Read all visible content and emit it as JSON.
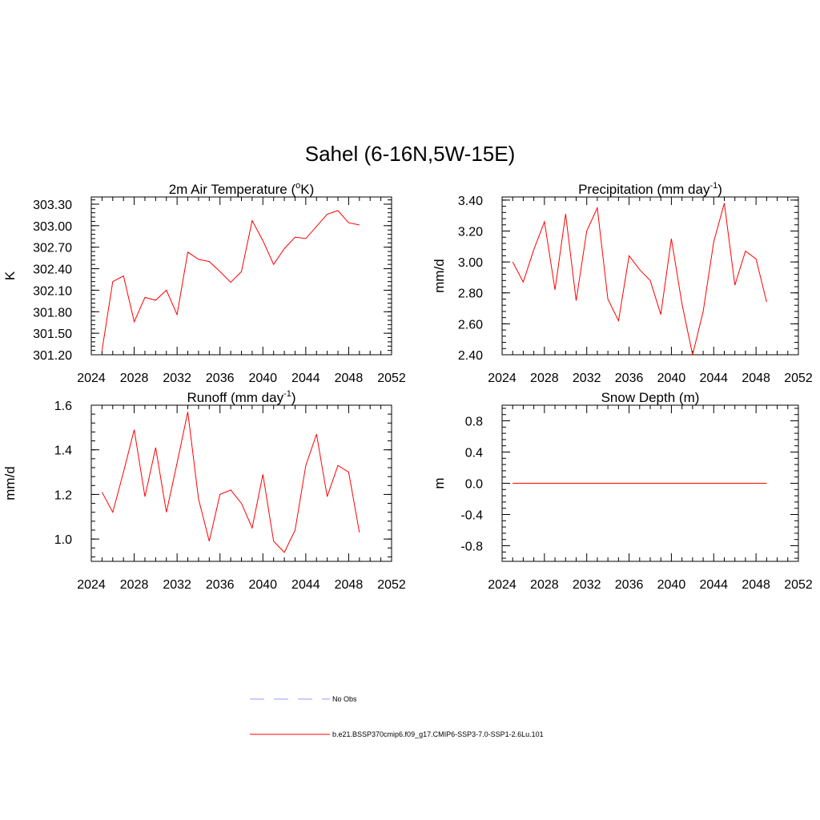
{
  "figure": {
    "title": "Sahel (6-16N,5W-15E)",
    "legend": [
      {
        "label": "No Obs",
        "color": "#9999ff",
        "dash": true
      },
      {
        "label": "b.e21.BSSP370cmip6.f09_g17.CMIP6-SSP3-7.0-SSP1-2.6Lu.101",
        "color": "#ff0000",
        "dash": false
      }
    ]
  },
  "chart_data": [
    {
      "type": "line",
      "title": "2m Air Temperature (",
      "title_sup": "o",
      "title_after": "K)",
      "ylabel": "K",
      "xlim": [
        2024,
        2052
      ],
      "ylim": [
        301.2,
        303.4
      ],
      "xticks": [
        "2024",
        "2028",
        "2032",
        "2036",
        "2040",
        "2044",
        "2048",
        "2052"
      ],
      "yticks": [
        "301.20",
        "301.50",
        "301.80",
        "302.10",
        "302.40",
        "302.70",
        "303.00",
        "303.30"
      ],
      "color": "#ff0000",
      "x": [
        2025,
        2026,
        2027,
        2028,
        2029,
        2030,
        2031,
        2032,
        2033,
        2034,
        2035,
        2036,
        2037,
        2038,
        2039,
        2040,
        2041,
        2042,
        2043,
        2044,
        2045,
        2046,
        2047,
        2048,
        2049
      ],
      "y": [
        301.26,
        302.22,
        302.3,
        301.66,
        302.0,
        301.96,
        302.1,
        301.76,
        302.63,
        302.53,
        302.5,
        302.36,
        302.21,
        302.36,
        303.07,
        302.79,
        302.46,
        302.68,
        302.84,
        302.82,
        302.99,
        303.16,
        303.21,
        303.04,
        303.01
      ]
    },
    {
      "type": "line",
      "title": "Precipitation (mm day",
      "title_sup": "-1",
      "title_after": ")",
      "ylabel": "mm/d",
      "xlim": [
        2024,
        2052
      ],
      "ylim": [
        2.4,
        3.42
      ],
      "xticks": [
        "2024",
        "2028",
        "2032",
        "2036",
        "2040",
        "2044",
        "2048",
        "2052"
      ],
      "yticks": [
        "2.40",
        "2.60",
        "2.80",
        "3.00",
        "3.20",
        "3.40"
      ],
      "color": "#ff0000",
      "x": [
        2025,
        2026,
        2027,
        2028,
        2029,
        2030,
        2031,
        2032,
        2033,
        2034,
        2035,
        2036,
        2037,
        2038,
        2039,
        2040,
        2041,
        2042,
        2043,
        2044,
        2045,
        2046,
        2047,
        2048,
        2049
      ],
      "y": [
        3.0,
        2.87,
        3.08,
        3.26,
        2.82,
        3.31,
        2.75,
        3.2,
        3.35,
        2.76,
        2.62,
        3.04,
        2.95,
        2.88,
        2.66,
        3.15,
        2.73,
        2.4,
        2.68,
        3.13,
        3.38,
        2.85,
        3.07,
        3.02,
        2.74
      ]
    },
    {
      "type": "line",
      "title": "Runoff (mm day",
      "title_sup": "-1",
      "title_after": ")",
      "ylabel": "mm/d",
      "xlim": [
        2024,
        2052
      ],
      "ylim": [
        0.9,
        1.6
      ],
      "xticks": [
        "2024",
        "2028",
        "2032",
        "2036",
        "2040",
        "2044",
        "2048",
        "2052"
      ],
      "yticks": [
        "1.0",
        "1.2",
        "1.4",
        "1.6"
      ],
      "color": "#ff0000",
      "x": [
        2025,
        2026,
        2027,
        2028,
        2029,
        2030,
        2031,
        2032,
        2033,
        2034,
        2035,
        2036,
        2037,
        2038,
        2039,
        2040,
        2041,
        2042,
        2043,
        2044,
        2045,
        2046,
        2047,
        2048,
        2049
      ],
      "y": [
        1.21,
        1.12,
        1.3,
        1.49,
        1.19,
        1.41,
        1.12,
        1.34,
        1.57,
        1.18,
        0.99,
        1.2,
        1.22,
        1.16,
        1.05,
        1.29,
        0.99,
        0.94,
        1.04,
        1.33,
        1.47,
        1.19,
        1.33,
        1.3,
        1.03
      ]
    },
    {
      "type": "line",
      "title": "Snow Depth (m)",
      "title_sup": "",
      "title_after": "",
      "ylabel": "m",
      "xlim": [
        2024,
        2052
      ],
      "ylim": [
        -1.0,
        1.0
      ],
      "xticks": [
        "2024",
        "2028",
        "2032",
        "2036",
        "2040",
        "2044",
        "2048",
        "2052"
      ],
      "yticks": [
        "-0.8",
        "-0.4",
        "0.0",
        "0.4",
        "0.8"
      ],
      "color": "#ff0000",
      "x": [
        2025,
        2049
      ],
      "y": [
        0.0,
        0.0
      ]
    }
  ]
}
